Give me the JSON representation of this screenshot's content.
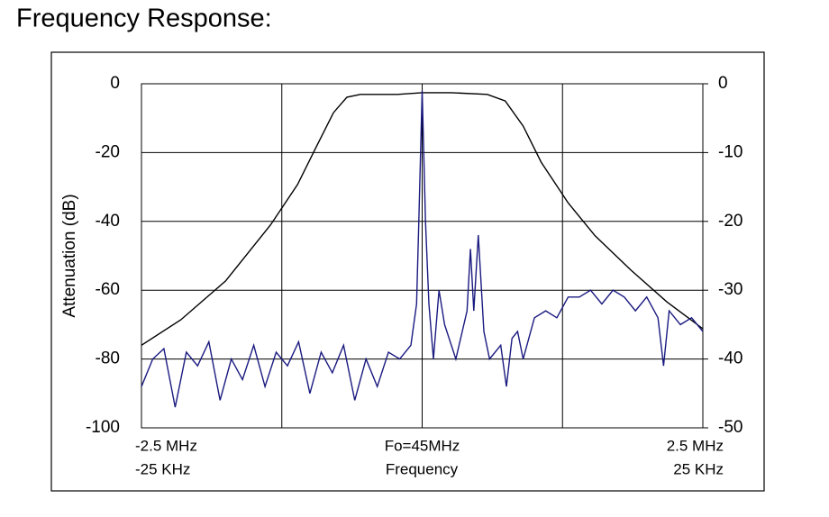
{
  "chart_data": {
    "type": "line",
    "title": "Frequency Response:",
    "y_label": "Attenuation (dB)",
    "x_label": "Frequency",
    "xlim": [
      -2.5,
      2.5
    ],
    "xticks": [
      {
        "value": -2.5,
        "label": "-2.5 MHz"
      },
      {
        "value": 0,
        "label": "Fo=45MHz"
      },
      {
        "value": 2.5,
        "label": "2.5 MHz"
      }
    ],
    "xgrid": [
      -2.5,
      -1.25,
      0,
      1.25,
      2.5
    ],
    "x2lim": [
      -25,
      25
    ],
    "x2ticks": [
      {
        "value": -25,
        "label": "-25 KHz"
      },
      {
        "value": 25,
        "label": "25 KHz"
      }
    ],
    "ylim": [
      -100,
      0
    ],
    "yticks": [
      0,
      -20,
      -40,
      -60,
      -80,
      -100
    ],
    "y2lim": [
      -50,
      0
    ],
    "y2ticks": [
      0,
      -10,
      -20,
      -30,
      -40,
      -50
    ],
    "grid": true,
    "series": [
      {
        "color": "#000000",
        "axis": "y",
        "xaxis": "x",
        "x": [
          -2.5,
          -2.15,
          -1.75,
          -1.35,
          -1.11,
          -0.95,
          -0.79,
          -0.67,
          -0.55,
          -0.22,
          0,
          0.26,
          0.58,
          0.74,
          0.9,
          1.06,
          1.3,
          1.54,
          1.86,
          2.18,
          2.5
        ],
        "values": [
          -76,
          -68.6,
          -57.3,
          -41,
          -29.3,
          -18.8,
          -8.4,
          -3.9,
          -3.1,
          -3.1,
          -2.6,
          -2.6,
          -3.1,
          -5,
          -12.3,
          -22.8,
          -34.6,
          -44.2,
          -54.2,
          -63.4,
          -71.2
        ]
      },
      {
        "color": "#1a1a80",
        "axis": "y2",
        "xaxis": "x2",
        "x": [
          -25,
          -24,
          -23,
          -22,
          -21,
          -20,
          -19,
          -18,
          -17,
          -16,
          -15,
          -14,
          -13,
          -12,
          -11,
          -10,
          -9,
          -8,
          -7,
          -6,
          -5,
          -4,
          -3,
          -2,
          -1,
          -0.5,
          -0.3,
          0,
          0.3,
          0.6,
          1,
          1.5,
          2,
          3,
          4,
          4.3,
          4.6,
          5,
          5.5,
          6,
          7,
          7.5,
          8,
          8.5,
          9,
          10,
          11,
          12,
          13,
          14,
          15,
          16,
          17,
          18,
          19,
          20,
          21,
          21.5,
          22,
          23,
          24,
          25
        ],
        "values": [
          -44,
          -40,
          -38.5,
          -47,
          -39,
          -41,
          -37.5,
          -46,
          -40,
          -43,
          -38,
          -44,
          -39,
          -41,
          -37.5,
          -45,
          -39,
          -42,
          -38,
          -46,
          -40,
          -44,
          -39,
          -40,
          -38,
          -32,
          -20,
          -1,
          -20,
          -32,
          -40,
          -30,
          -35,
          -40,
          -33,
          -24,
          -33,
          -22,
          -36,
          -40,
          -38,
          -44,
          -37,
          -36,
          -40,
          -34,
          -33,
          -34,
          -31,
          -31,
          -30,
          -32,
          -30,
          -31,
          -33,
          -31,
          -34,
          -41,
          -33,
          -35,
          -34,
          -36
        ]
      }
    ]
  }
}
